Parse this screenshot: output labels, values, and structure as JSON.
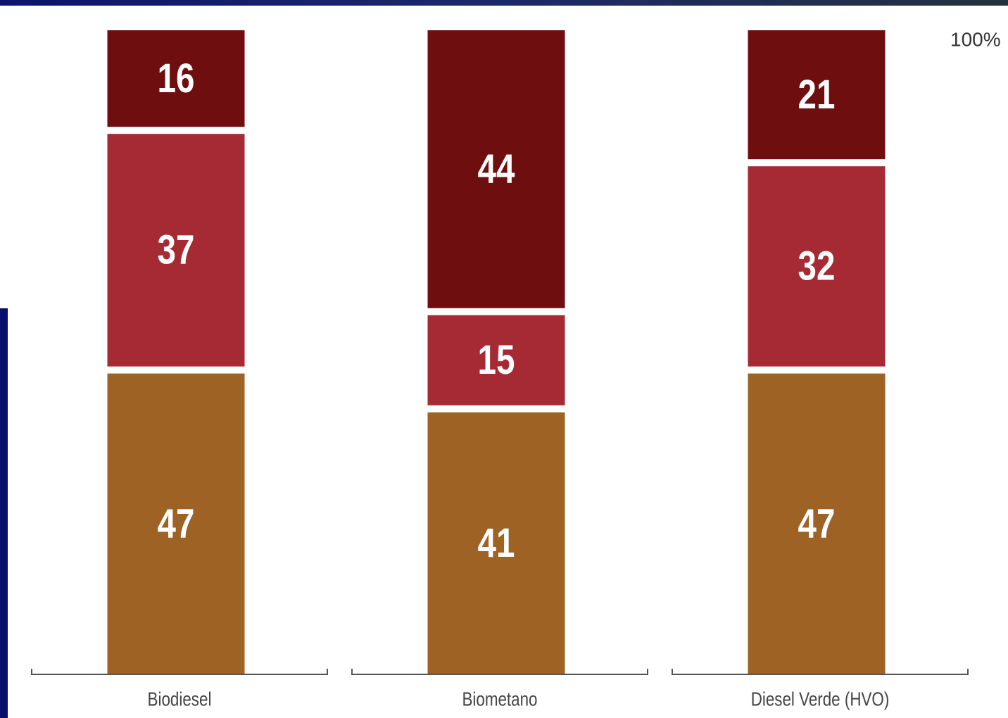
{
  "chart_data": {
    "type": "stacked-bar",
    "categories": [
      "Biodiesel",
      "Biometano",
      "Diesel Verde (HVO)"
    ],
    "series": [
      {
        "color": "#9e6224",
        "values": [
          47,
          41,
          47
        ]
      },
      {
        "color": "#a52a33",
        "values": [
          37,
          15,
          32
        ]
      },
      {
        "color": "#6e0e0e",
        "values": [
          16,
          44,
          21
        ]
      }
    ],
    "ylim": [
      0,
      100
    ],
    "yticks": [
      {
        "value": 100,
        "label": "100%"
      }
    ]
  }
}
